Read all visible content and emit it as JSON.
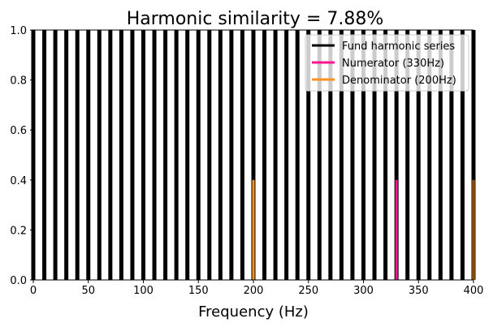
{
  "chart_data": {
    "type": "line",
    "title": "Harmonic similarity = 7.88%",
    "xlabel": "Frequency (Hz)",
    "ylabel": "",
    "xlim": [
      0,
      400
    ],
    "ylim": [
      0,
      1
    ],
    "xticks": [
      0,
      50,
      100,
      150,
      200,
      250,
      300,
      350,
      400
    ],
    "yticks": [
      0.0,
      0.2,
      0.4,
      0.6,
      0.8,
      1.0
    ],
    "xtick_labels": [
      "0",
      "50",
      "100",
      "150",
      "200",
      "250",
      "300",
      "350",
      "400"
    ],
    "ytick_labels": [
      "0.0",
      "0.2",
      "0.4",
      "0.6",
      "0.8",
      "1.0"
    ],
    "grid": false,
    "legend_position": "top-right",
    "series": [
      {
        "name": "Fund harmonic series",
        "color": "#000000",
        "x": [
          0,
          10,
          20,
          30,
          40,
          50,
          60,
          70,
          80,
          90,
          100,
          110,
          120,
          130,
          140,
          150,
          160,
          170,
          180,
          190,
          200,
          210,
          220,
          230,
          240,
          250,
          260,
          270,
          280,
          290,
          300,
          310,
          320,
          330,
          340,
          350,
          360,
          370,
          380,
          390,
          400
        ],
        "y": 1.0
      },
      {
        "name": "Numerator (330Hz)",
        "color": "#ff1493",
        "x": [
          330
        ],
        "y": 0.4
      },
      {
        "name": "Denominator (200Hz)",
        "color": "#f7931e",
        "x": [
          200,
          400
        ],
        "y": 0.4
      }
    ]
  }
}
